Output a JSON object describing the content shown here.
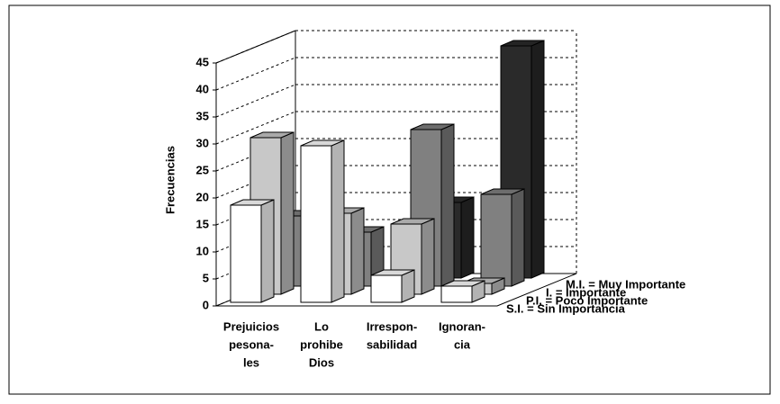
{
  "chart_data": {
    "type": "bar3d",
    "y_label": "Frecuencias",
    "categories": [
      [
        "Prejuicios",
        "pesona-",
        "les"
      ],
      [
        "Lo",
        "prohibe",
        "Dios"
      ],
      [
        "Irrespon-",
        "sabilidad"
      ],
      [
        "Ignoran-",
        "cia"
      ]
    ],
    "series": [
      {
        "name": "S.I. = Sin Importancia",
        "color": "#ffffff",
        "values": [
          18,
          29,
          5,
          3
        ]
      },
      {
        "name": "P.I. = Poco Importante",
        "color": "#c8c8c8",
        "values": [
          29,
          15,
          13,
          2
        ]
      },
      {
        "name": "I. = Importante",
        "color": "#808080",
        "values": [
          13,
          10,
          29,
          17
        ]
      },
      {
        "name": "M.I. = Muy Importante",
        "color": "#2a2a2a",
        "values": [
          0,
          0,
          14,
          43
        ]
      }
    ],
    "ylim": [
      0,
      45
    ],
    "yticks": [
      0,
      5,
      10,
      15,
      20,
      25,
      30,
      35,
      40,
      45
    ],
    "grid": true
  }
}
